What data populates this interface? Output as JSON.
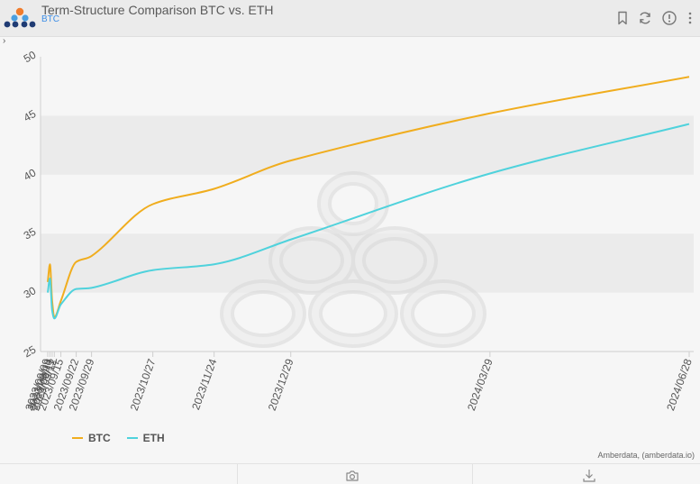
{
  "header": {
    "title": "Term-Structure Comparison BTC vs. ETH",
    "subtitle": "BTC",
    "icons": [
      "bookmark-icon",
      "refresh-icon",
      "info-icon",
      "more-vertical-icon"
    ]
  },
  "footer": {
    "icons": [
      "camera-icon",
      "download-icon"
    ]
  },
  "credits": "Amberdata, (amberdata.io)",
  "colors": {
    "btc": "#f0ad1e",
    "eth": "#4fd2dc",
    "band": "#ebebeb"
  },
  "chart_data": {
    "type": "line",
    "title": "",
    "xlabel": "",
    "ylabel": "",
    "ylim": [
      25,
      50
    ],
    "yticks": [
      25,
      30,
      35,
      40,
      45,
      50
    ],
    "x": [
      "2023/09/09",
      "2023/09/10",
      "2023/09/11",
      "2023/09/12",
      "2023/09/15",
      "2023/09/22",
      "2023/09/29",
      "2023/10/27",
      "2023/11/24",
      "2023/12/29",
      "2024/03/29",
      "2024/06/28"
    ],
    "xtick_labels": [
      "2023/09/09",
      "2023/09/10",
      "2023/09/11",
      "2023/09/12",
      "2023/09/15",
      "2023/09/22",
      "2023/09/29",
      "2023/10/27",
      "2023/11/24",
      "2023/12/29",
      "2024/03/29",
      "2024/06/28"
    ],
    "series": [
      {
        "name": "BTC",
        "values": [
          30.9,
          32.4,
          29.3,
          27.9,
          29.3,
          32.6,
          33.1,
          37.5,
          38.8,
          41.2,
          45.2,
          48.3
        ]
      },
      {
        "name": "ETH",
        "values": [
          30.0,
          31.2,
          28.5,
          27.8,
          29.0,
          30.3,
          30.4,
          31.9,
          32.4,
          34.5,
          40.1,
          44.3
        ]
      }
    ],
    "grid": "alternating-bands",
    "legend": "bottom-left"
  }
}
